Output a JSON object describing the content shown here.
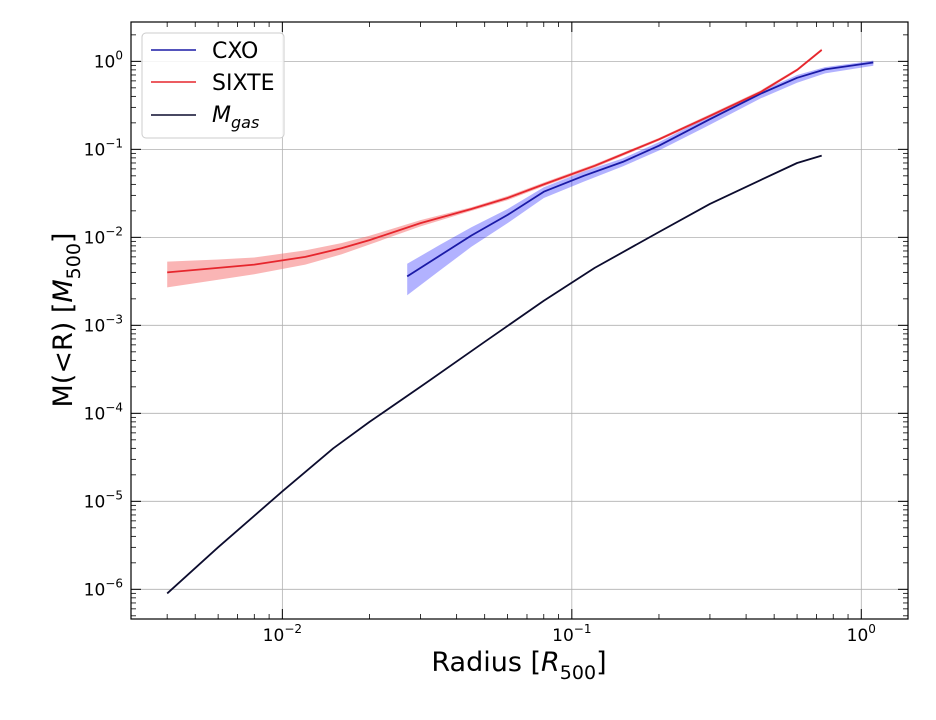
{
  "chart_data": {
    "type": "line",
    "x_scale": "log",
    "y_scale": "log",
    "xlim": [
      0.003,
      1.45
    ],
    "ylim": [
      4.6e-07,
      2.8
    ],
    "grid": true,
    "legend_position": "top-left",
    "xlabel": {
      "main": "Radius [",
      "sym": "R",
      "sub": "500",
      "end": "]"
    },
    "ylabel": {
      "main": "M(<R) [",
      "sym": "M",
      "sub": "500",
      "end": "]"
    },
    "x_ticks": [
      {
        "value": 0.01,
        "base": "10",
        "exp": "−2"
      },
      {
        "value": 0.1,
        "base": "10",
        "exp": "−1"
      },
      {
        "value": 1,
        "base": "10",
        "exp": "0"
      }
    ],
    "y_ticks": [
      {
        "value": 1e-06,
        "base": "10",
        "exp": "−6"
      },
      {
        "value": 1e-05,
        "base": "10",
        "exp": "−5"
      },
      {
        "value": 0.0001,
        "base": "10",
        "exp": "−4"
      },
      {
        "value": 0.001,
        "base": "10",
        "exp": "−3"
      },
      {
        "value": 0.01,
        "base": "10",
        "exp": "−2"
      },
      {
        "value": 0.1,
        "base": "10",
        "exp": "−1"
      },
      {
        "value": 1,
        "base": "10",
        "exp": "0"
      }
    ],
    "series": [
      {
        "name": "CXO",
        "name_sym": "",
        "name_sub": "",
        "color": "#0000ff",
        "line_color": "#1a1aa6",
        "band_color": "#0000ff",
        "band_opacity": 0.3,
        "x": [
          0.027,
          0.035,
          0.045,
          0.06,
          0.08,
          0.11,
          0.15,
          0.2,
          0.3,
          0.45,
          0.6,
          0.75,
          1.1
        ],
        "y": [
          0.0036,
          0.0062,
          0.0105,
          0.018,
          0.033,
          0.05,
          0.072,
          0.11,
          0.22,
          0.43,
          0.65,
          0.81,
          0.97
        ],
        "y_low": [
          0.0022,
          0.0042,
          0.0078,
          0.0145,
          0.028,
          0.043,
          0.064,
          0.097,
          0.19,
          0.38,
          0.57,
          0.73,
          0.89
        ],
        "y_high": [
          0.005,
          0.0082,
          0.013,
          0.021,
          0.037,
          0.056,
          0.079,
          0.121,
          0.24,
          0.46,
          0.7,
          0.86,
          1.02
        ]
      },
      {
        "name": "SIXTE",
        "name_sym": "",
        "name_sub": "",
        "color": "#e6262d",
        "line_color": "#e6262d",
        "band_color": "#f56b6b",
        "band_opacity": 0.5,
        "x": [
          0.004,
          0.006,
          0.008,
          0.012,
          0.016,
          0.02,
          0.03,
          0.045,
          0.06,
          0.08,
          0.12,
          0.2,
          0.3,
          0.45,
          0.6,
          0.73
        ],
        "y": [
          0.004,
          0.0045,
          0.0049,
          0.006,
          0.0075,
          0.0093,
          0.0145,
          0.021,
          0.028,
          0.04,
          0.065,
          0.13,
          0.24,
          0.45,
          0.8,
          1.35
        ],
        "y_low": [
          0.0027,
          0.0033,
          0.0038,
          0.0049,
          0.0064,
          0.0083,
          0.0133,
          0.02,
          0.0265,
          0.038,
          0.062,
          0.125,
          0.23,
          0.43,
          0.77,
          1.3
        ],
        "y_high": [
          0.0053,
          0.0056,
          0.0059,
          0.0071,
          0.0086,
          0.0104,
          0.0157,
          0.022,
          0.0295,
          0.042,
          0.068,
          0.135,
          0.25,
          0.47,
          0.83,
          1.4
        ]
      },
      {
        "name": "",
        "name_sym": "M",
        "name_sub": "gas",
        "color": "#000000",
        "line_color": "#0c0c2e",
        "x": [
          0.004,
          0.006,
          0.01,
          0.015,
          0.02,
          0.03,
          0.05,
          0.08,
          0.12,
          0.2,
          0.3,
          0.45,
          0.6,
          0.73
        ],
        "y": [
          9e-07,
          3e-06,
          1.3e-05,
          4e-05,
          8e-05,
          0.0002,
          0.00065,
          0.0019,
          0.0045,
          0.0115,
          0.024,
          0.045,
          0.07,
          0.085
        ]
      }
    ]
  }
}
